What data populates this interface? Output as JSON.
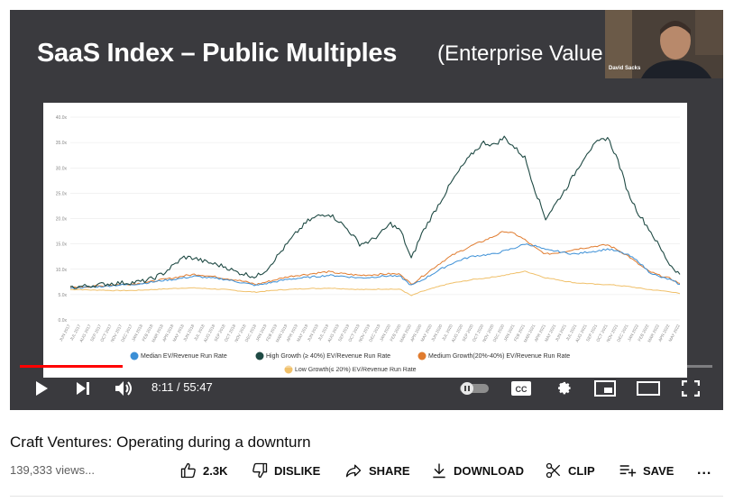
{
  "slide": {
    "title": "SaaS Index – Public Multiples",
    "title_sub": "(Enterprise Value"
  },
  "webcam": {
    "name": "David Sacks"
  },
  "chart_data": {
    "type": "line",
    "ylim": [
      0,
      40
    ],
    "ytick_labels": [
      "0.0x",
      "5.0x",
      "10.0x",
      "15.0x",
      "20.0x",
      "25.0x",
      "30.0x",
      "35.0x",
      "40.0x"
    ],
    "x": [
      "JUN 2017",
      "JUL 2017",
      "AUG 2017",
      "SEP 2017",
      "OCT 2017",
      "NOV 2017",
      "DEC 2017",
      "JAN 2018",
      "FEB 2018",
      "MAR 2018",
      "APR 2018",
      "MAY 2018",
      "JUN 2018",
      "JUL 2018",
      "AUG 2018",
      "SEP 2018",
      "OCT 2018",
      "NOV 2018",
      "DEC 2018",
      "JAN 2019",
      "FEB 2019",
      "MAR 2019",
      "APR 2019",
      "MAY 2019",
      "JUN 2019",
      "JUL 2019",
      "AUG 2019",
      "SEP 2019",
      "OCT 2019",
      "NOV 2019",
      "DEC 2019",
      "JAN 2020",
      "FEB 2020",
      "MAR 2020",
      "APR 2020",
      "MAY 2020",
      "JUN 2020",
      "JUL 2020",
      "AUG 2020",
      "SEP 2020",
      "OCT 2020",
      "NOV 2020",
      "DEC 2020",
      "JAN 2021",
      "FEB 2021",
      "MAR 2021",
      "APR 2021",
      "MAY 2021",
      "JUN 2021",
      "JUL 2021",
      "AUG 2021",
      "SEP 2021",
      "OCT 2021",
      "NOV 2021",
      "DEC 2021",
      "JAN 2022",
      "FEB 2022",
      "MAR 2022",
      "APR 2022",
      "MAY 2022"
    ],
    "series": [
      {
        "name": "Median EV/Revenue Run Rate",
        "color": "#3b8fd6",
        "values": [
          6.2,
          6.4,
          6.5,
          6.6,
          6.8,
          6.9,
          7.0,
          7.2,
          7.5,
          7.8,
          8.0,
          8.3,
          8.6,
          8.4,
          8.2,
          8.0,
          7.6,
          7.2,
          6.8,
          7.2,
          7.6,
          8.0,
          8.2,
          8.4,
          8.6,
          8.8,
          8.7,
          8.5,
          8.3,
          8.4,
          8.6,
          8.7,
          8.5,
          6.8,
          7.8,
          9.0,
          10.2,
          11.2,
          12.0,
          12.6,
          12.8,
          13.0,
          13.6,
          14.2,
          15.0,
          14.6,
          13.8,
          13.6,
          13.2,
          13.0,
          13.4,
          13.6,
          14.0,
          13.5,
          12.8,
          11.5,
          9.5,
          8.5,
          8.0,
          7.0
        ]
      },
      {
        "name": "High Growth (≥ 40%) EV/Revenue Run Rate",
        "color": "#1f4a44",
        "values": [
          6.4,
          6.6,
          6.8,
          7.0,
          7.2,
          7.3,
          7.4,
          7.6,
          8.2,
          9.2,
          10.8,
          12.4,
          12.2,
          11.5,
          11.0,
          10.5,
          9.5,
          9.0,
          8.5,
          10.0,
          12.5,
          15.0,
          17.5,
          19.5,
          20.5,
          21.0,
          19.5,
          17.5,
          15.0,
          15.5,
          17.0,
          19.0,
          17.5,
          12.0,
          17.0,
          20.5,
          24.0,
          27.5,
          30.5,
          33.0,
          35.0,
          34.5,
          36.0,
          34.0,
          32.0,
          25.5,
          20.0,
          23.0,
          26.0,
          29.5,
          33.0,
          35.0,
          36.0,
          31.5,
          25.0,
          21.0,
          18.0,
          14.5,
          11.0,
          9.0
        ]
      },
      {
        "name": "Medium Growth(20%-40%) EV/Revenue Run Rate",
        "color": "#e07b2e",
        "values": [
          6.3,
          6.5,
          6.6,
          6.7,
          6.9,
          7.0,
          7.1,
          7.3,
          7.6,
          8.0,
          8.3,
          8.7,
          9.0,
          8.8,
          8.5,
          8.2,
          7.9,
          7.5,
          7.0,
          7.5,
          8.0,
          8.5,
          8.8,
          9.0,
          9.3,
          9.5,
          9.2,
          9.0,
          8.8,
          8.9,
          9.0,
          9.1,
          9.0,
          7.0,
          8.5,
          10.0,
          11.5,
          12.8,
          13.8,
          14.8,
          15.6,
          16.5,
          17.5,
          17.0,
          15.8,
          14.2,
          13.0,
          13.2,
          13.6,
          14.0,
          14.3,
          14.6,
          14.8,
          13.8,
          12.6,
          11.0,
          9.6,
          8.8,
          8.2,
          7.2
        ]
      },
      {
        "name": "Low Growth(≤ 20%) EV/Revenue Run Rate",
        "color": "#f0c06a",
        "values": [
          6.0,
          6.0,
          5.9,
          5.9,
          5.8,
          5.8,
          5.8,
          5.9,
          6.0,
          6.1,
          6.2,
          6.3,
          6.3,
          6.2,
          6.1,
          6.0,
          5.8,
          5.6,
          5.5,
          5.7,
          5.9,
          6.0,
          6.1,
          6.2,
          6.2,
          6.3,
          6.2,
          6.1,
          6.0,
          6.0,
          6.1,
          6.1,
          6.0,
          4.8,
          5.6,
          6.2,
          6.8,
          7.3,
          7.6,
          8.0,
          8.2,
          8.5,
          8.8,
          9.2,
          9.6,
          9.0,
          8.3,
          8.0,
          7.6,
          7.3,
          7.2,
          7.0,
          7.0,
          6.8,
          6.6,
          6.3,
          6.0,
          5.8,
          5.6,
          5.2
        ]
      }
    ],
    "legend_position": "bottom",
    "grid": true
  },
  "player": {
    "progress_percent": 14.8,
    "time_current": "8:11",
    "time_separator": " / ",
    "time_total": "55:47",
    "cc_label": "CC"
  },
  "video": {
    "title": "Craft Ventures: Operating during a downturn",
    "views": "139,333 views..."
  },
  "actions": {
    "like_count": "2.3K",
    "dislike_label": "DISLIKE",
    "share_label": "SHARE",
    "download_label": "DOWNLOAD",
    "clip_label": "CLIP",
    "save_label": "SAVE",
    "more_label": "..."
  },
  "icons": {
    "play": "play-icon",
    "next": "next-icon",
    "volume": "volume-icon",
    "autoplay": "autoplay-toggle-icon",
    "cc": "cc-icon",
    "settings": "gear-icon",
    "miniplayer": "miniplayer-icon",
    "theater": "theater-icon",
    "fullscreen": "fullscreen-icon",
    "like": "thumbs-up-icon",
    "dislike": "thumbs-down-icon",
    "share": "share-arrow-icon",
    "download": "download-icon",
    "clip": "scissors-icon",
    "save": "playlist-add-icon"
  }
}
